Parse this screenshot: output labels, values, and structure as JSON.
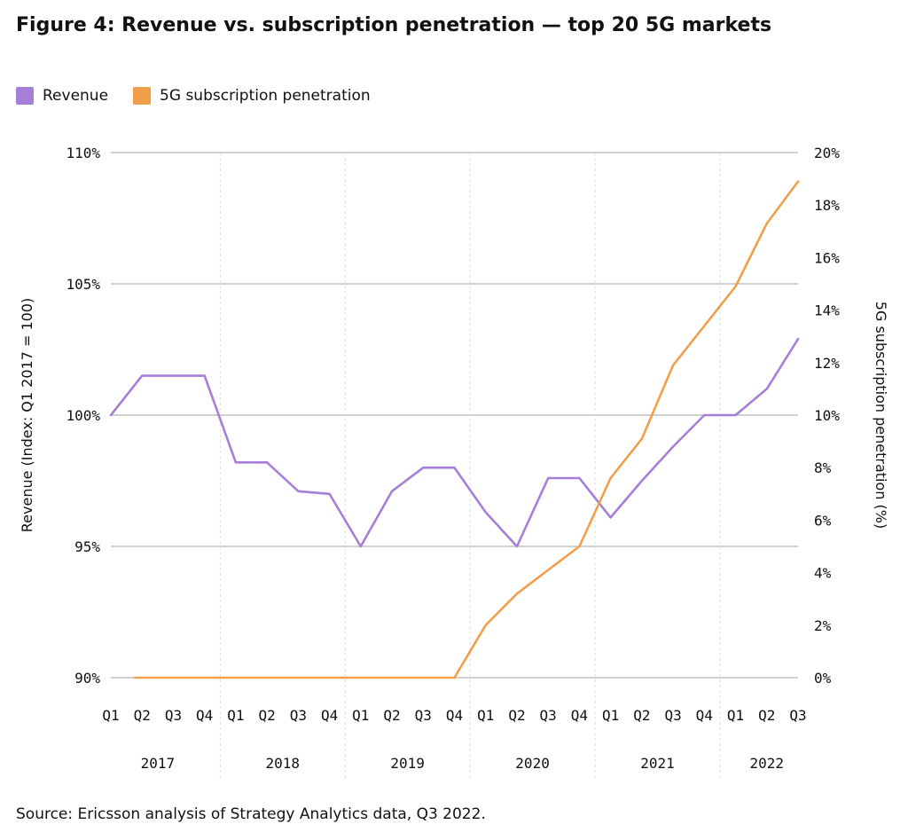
{
  "title": "Figure 4: Revenue vs. subscription penetration — top 20 5G markets",
  "source": "Source: Ericsson analysis of Strategy Analytics data, Q3 2022.",
  "legend": [
    {
      "label": "Revenue",
      "color": "#a57fd8"
    },
    {
      "label": "5G subscription penetration",
      "color": "#f0a04b"
    }
  ],
  "chart_data": {
    "type": "line",
    "ylabel": "Revenue (Index: Q1 2017 = 100)",
    "y2label": "5G subscription penetration (%)",
    "ylim": [
      90,
      110
    ],
    "y2lim": [
      0,
      20
    ],
    "yticks": [
      "90%",
      "95%",
      "100%",
      "105%",
      "110%"
    ],
    "y2ticks": [
      "0%",
      "2%",
      "4%",
      "6%",
      "8%",
      "10%",
      "12%",
      "14%",
      "16%",
      "18%",
      "20%"
    ],
    "x": [
      "Q1",
      "Q2",
      "Q3",
      "Q4",
      "Q1",
      "Q2",
      "Q3",
      "Q4",
      "Q1",
      "Q2",
      "Q3",
      "Q4",
      "Q1",
      "Q2",
      "Q3",
      "Q4",
      "Q1",
      "Q2",
      "Q3",
      "Q4",
      "Q1",
      "Q2",
      "Q3"
    ],
    "years": [
      "2017",
      "2018",
      "2019",
      "2020",
      "2021",
      "2022"
    ],
    "grid": "horizontal",
    "legend_position": "top-left",
    "series": [
      {
        "name": "Revenue",
        "axis": "left",
        "color": "#a57fd8",
        "values": [
          100.0,
          101.5,
          101.5,
          101.5,
          98.2,
          98.2,
          97.1,
          97.0,
          95.0,
          97.1,
          98.0,
          98.0,
          96.3,
          95.0,
          97.6,
          97.6,
          96.1,
          97.5,
          98.8,
          100.0,
          100.0,
          101.0,
          102.9
        ]
      },
      {
        "name": "5G subscription penetration",
        "axis": "right",
        "color": "#f0a04b",
        "values": [
          0,
          0,
          0,
          0,
          0,
          0,
          0,
          0,
          0,
          0,
          0,
          0,
          2.0,
          3.2,
          4.1,
          5.0,
          7.6,
          9.1,
          11.9,
          13.4,
          14.9,
          17.3,
          18.9
        ]
      }
    ]
  }
}
